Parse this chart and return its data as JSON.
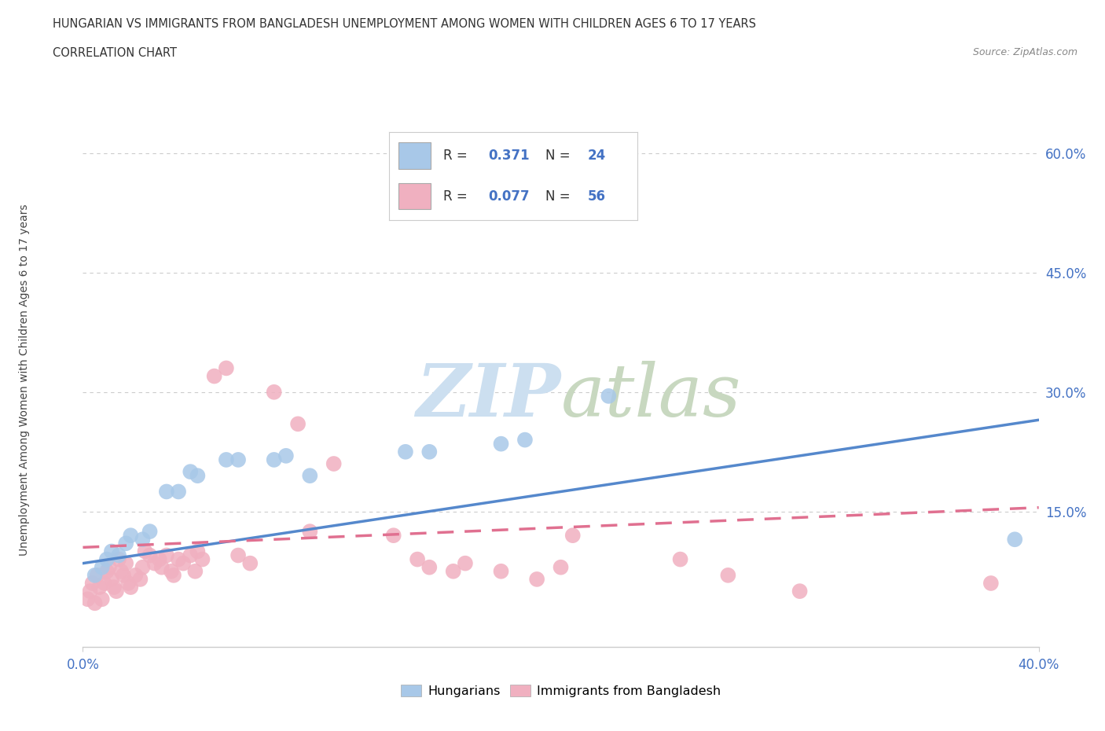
{
  "title_line1": "HUNGARIAN VS IMMIGRANTS FROM BANGLADESH UNEMPLOYMENT AMONG WOMEN WITH CHILDREN AGES 6 TO 17 YEARS",
  "title_line2": "CORRELATION CHART",
  "source": "Source: ZipAtlas.com",
  "ylabel": "Unemployment Among Women with Children Ages 6 to 17 years",
  "xmin": 0.0,
  "xmax": 0.4,
  "ymin": -0.02,
  "ymax": 0.65,
  "x_tick_labels": [
    "0.0%",
    "40.0%"
  ],
  "y_ticks": [
    0.15,
    0.3,
    0.45,
    0.6
  ],
  "y_tick_labels": [
    "15.0%",
    "30.0%",
    "45.0%",
    "60.0%"
  ],
  "blue_color": "#a8c8e8",
  "pink_color": "#f0b0c0",
  "blue_line_color": "#5588cc",
  "pink_line_color": "#e07090",
  "grid_color": "#cccccc",
  "bg_color": "#ffffff",
  "blue_scatter": [
    [
      0.005,
      0.07
    ],
    [
      0.008,
      0.08
    ],
    [
      0.01,
      0.09
    ],
    [
      0.012,
      0.1
    ],
    [
      0.015,
      0.095
    ],
    [
      0.018,
      0.11
    ],
    [
      0.02,
      0.12
    ],
    [
      0.025,
      0.115
    ],
    [
      0.028,
      0.125
    ],
    [
      0.035,
      0.175
    ],
    [
      0.04,
      0.175
    ],
    [
      0.045,
      0.2
    ],
    [
      0.048,
      0.195
    ],
    [
      0.06,
      0.215
    ],
    [
      0.065,
      0.215
    ],
    [
      0.08,
      0.215
    ],
    [
      0.085,
      0.22
    ],
    [
      0.095,
      0.195
    ],
    [
      0.135,
      0.225
    ],
    [
      0.145,
      0.225
    ],
    [
      0.175,
      0.235
    ],
    [
      0.185,
      0.24
    ],
    [
      0.22,
      0.295
    ],
    [
      0.39,
      0.115
    ]
  ],
  "pink_scatter": [
    [
      0.002,
      0.04
    ],
    [
      0.003,
      0.05
    ],
    [
      0.004,
      0.06
    ],
    [
      0.005,
      0.035
    ],
    [
      0.006,
      0.07
    ],
    [
      0.007,
      0.055
    ],
    [
      0.008,
      0.04
    ],
    [
      0.009,
      0.06
    ],
    [
      0.01,
      0.075
    ],
    [
      0.011,
      0.08
    ],
    [
      0.012,
      0.065
    ],
    [
      0.013,
      0.055
    ],
    [
      0.014,
      0.05
    ],
    [
      0.015,
      0.09
    ],
    [
      0.016,
      0.075
    ],
    [
      0.017,
      0.07
    ],
    [
      0.018,
      0.085
    ],
    [
      0.019,
      0.06
    ],
    [
      0.02,
      0.055
    ],
    [
      0.022,
      0.07
    ],
    [
      0.024,
      0.065
    ],
    [
      0.025,
      0.08
    ],
    [
      0.026,
      0.1
    ],
    [
      0.028,
      0.095
    ],
    [
      0.03,
      0.085
    ],
    [
      0.032,
      0.09
    ],
    [
      0.033,
      0.08
    ],
    [
      0.035,
      0.095
    ],
    [
      0.037,
      0.075
    ],
    [
      0.038,
      0.07
    ],
    [
      0.04,
      0.09
    ],
    [
      0.042,
      0.085
    ],
    [
      0.045,
      0.095
    ],
    [
      0.047,
      0.075
    ],
    [
      0.048,
      0.1
    ],
    [
      0.05,
      0.09
    ],
    [
      0.055,
      0.32
    ],
    [
      0.06,
      0.33
    ],
    [
      0.065,
      0.095
    ],
    [
      0.07,
      0.085
    ],
    [
      0.08,
      0.3
    ],
    [
      0.09,
      0.26
    ],
    [
      0.095,
      0.125
    ],
    [
      0.105,
      0.21
    ],
    [
      0.13,
      0.12
    ],
    [
      0.14,
      0.09
    ],
    [
      0.145,
      0.08
    ],
    [
      0.155,
      0.075
    ],
    [
      0.16,
      0.085
    ],
    [
      0.175,
      0.075
    ],
    [
      0.19,
      0.065
    ],
    [
      0.2,
      0.08
    ],
    [
      0.205,
      0.12
    ],
    [
      0.25,
      0.09
    ],
    [
      0.27,
      0.07
    ],
    [
      0.3,
      0.05
    ],
    [
      0.38,
      0.06
    ]
  ],
  "blue_trendline_x": [
    0.0,
    0.4
  ],
  "blue_trendline_y": [
    0.085,
    0.265
  ],
  "pink_trendline_x": [
    0.0,
    0.4
  ],
  "pink_trendline_y": [
    0.105,
    0.155
  ]
}
